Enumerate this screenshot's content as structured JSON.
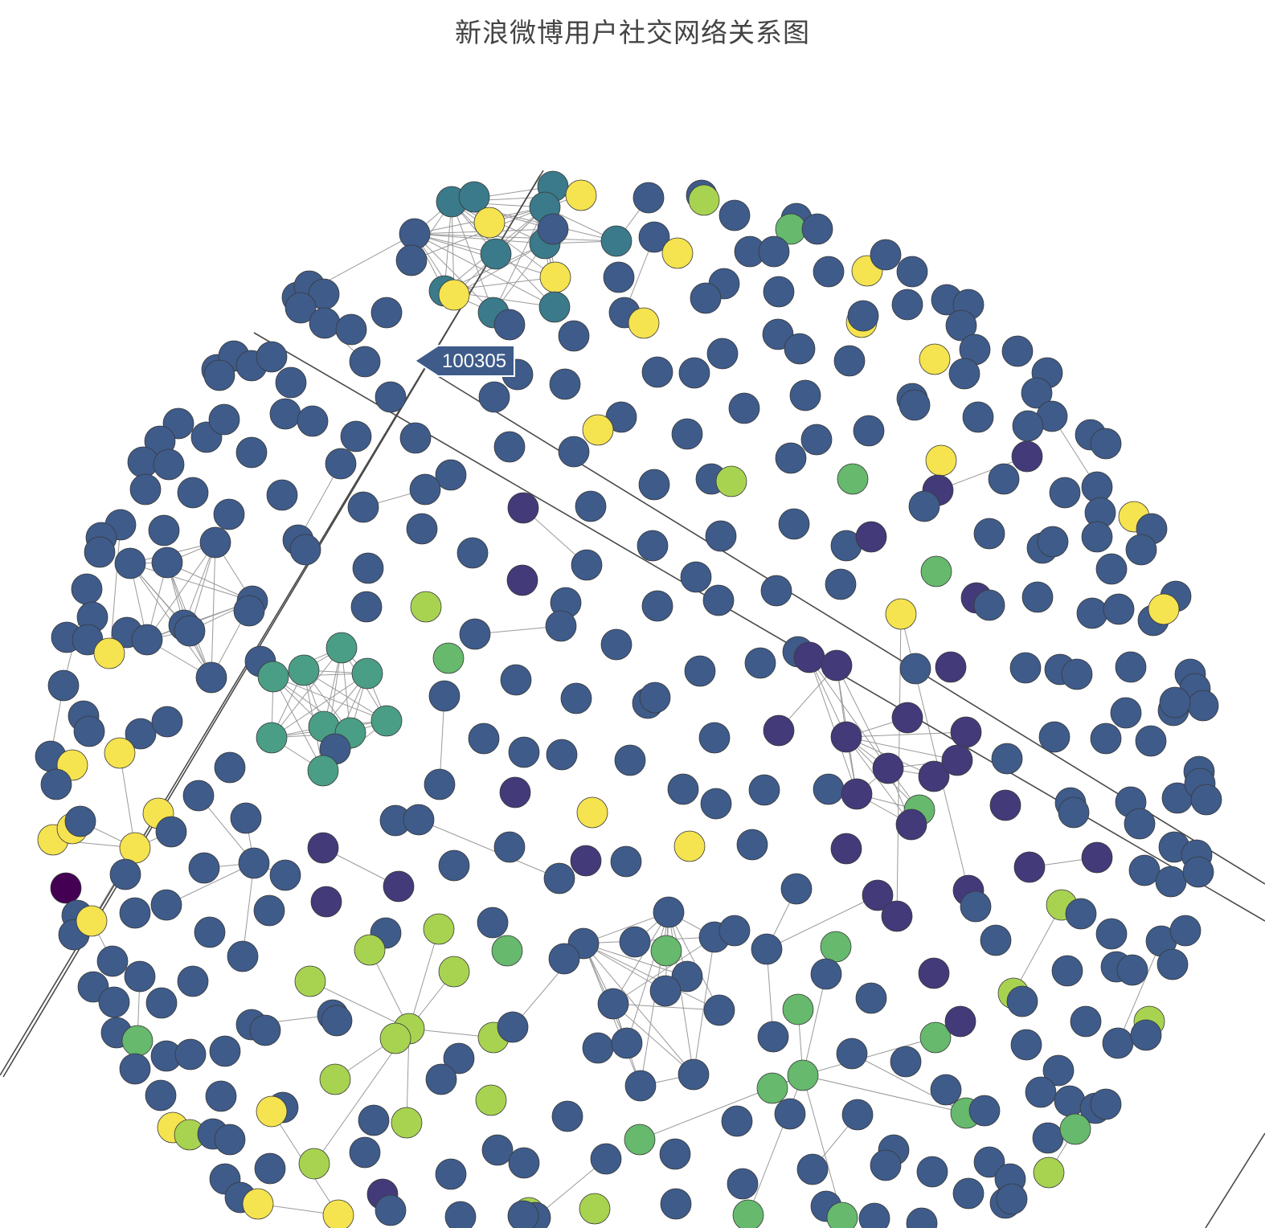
{
  "title": "新浪微博用户社交网络关系图",
  "colors": {
    "dark": "#440154",
    "purple": "#433a7a",
    "blue": "#3e5b8a",
    "teal": "#3a7a8a",
    "sea": "#4a9e86",
    "green": "#66b96d",
    "lime": "#a8d351",
    "yellow": "#f5e350",
    "edge": "#9a9a9a",
    "long_edge": "#4a4a4a",
    "label_bg": "#3e5b8a"
  },
  "hover_label": {
    "text": "100305"
  }
}
